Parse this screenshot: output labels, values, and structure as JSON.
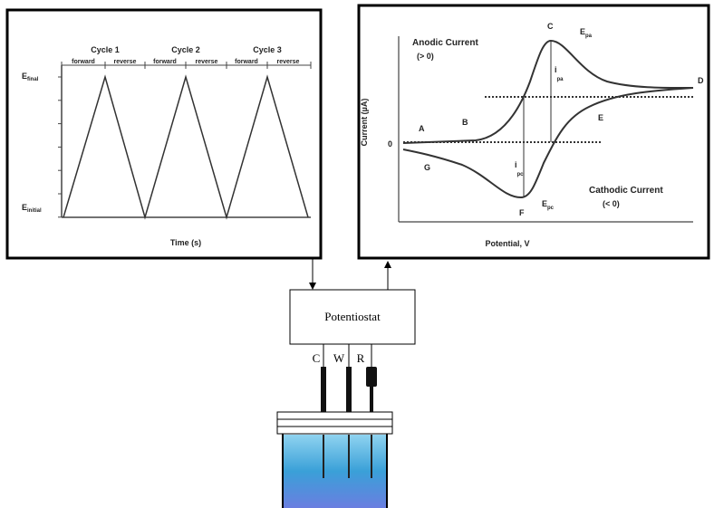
{
  "left_panel": {
    "cycles": [
      {
        "label": "Cycle 1",
        "forward": "forward",
        "reverse": "reverse"
      },
      {
        "label": "Cycle 2",
        "forward": "forward",
        "reverse": "reverse"
      },
      {
        "label": "Cycle 3",
        "forward": "forward",
        "reverse": "reverse"
      }
    ],
    "e_final": {
      "main": "E",
      "sub": "final"
    },
    "e_initial": {
      "main": "E",
      "sub": "initial"
    },
    "x_label": "Time (s)"
  },
  "right_panel": {
    "anodic": "Anodic Current",
    "anodic_sign": "(> 0)",
    "cathodic": "Cathodic Current",
    "cathodic_sign": "(< 0)",
    "y_label": "Current (µA)",
    "x_label": "Potential, V",
    "zero": "0",
    "points": {
      "A": "A",
      "B": "B",
      "C": "C",
      "D": "D",
      "E": "E",
      "F": "F",
      "G": "G"
    },
    "e_pa": {
      "main": "E",
      "sub": "pa"
    },
    "i_pa": {
      "main": "i",
      "sub": "pa"
    },
    "e_pc": {
      "main": "E",
      "sub": "pc"
    },
    "i_pc": {
      "main": "i",
      "sub": "pc"
    }
  },
  "instrument": {
    "label": "Potentiostat",
    "electrodes": [
      "C",
      "W",
      "R"
    ]
  }
}
